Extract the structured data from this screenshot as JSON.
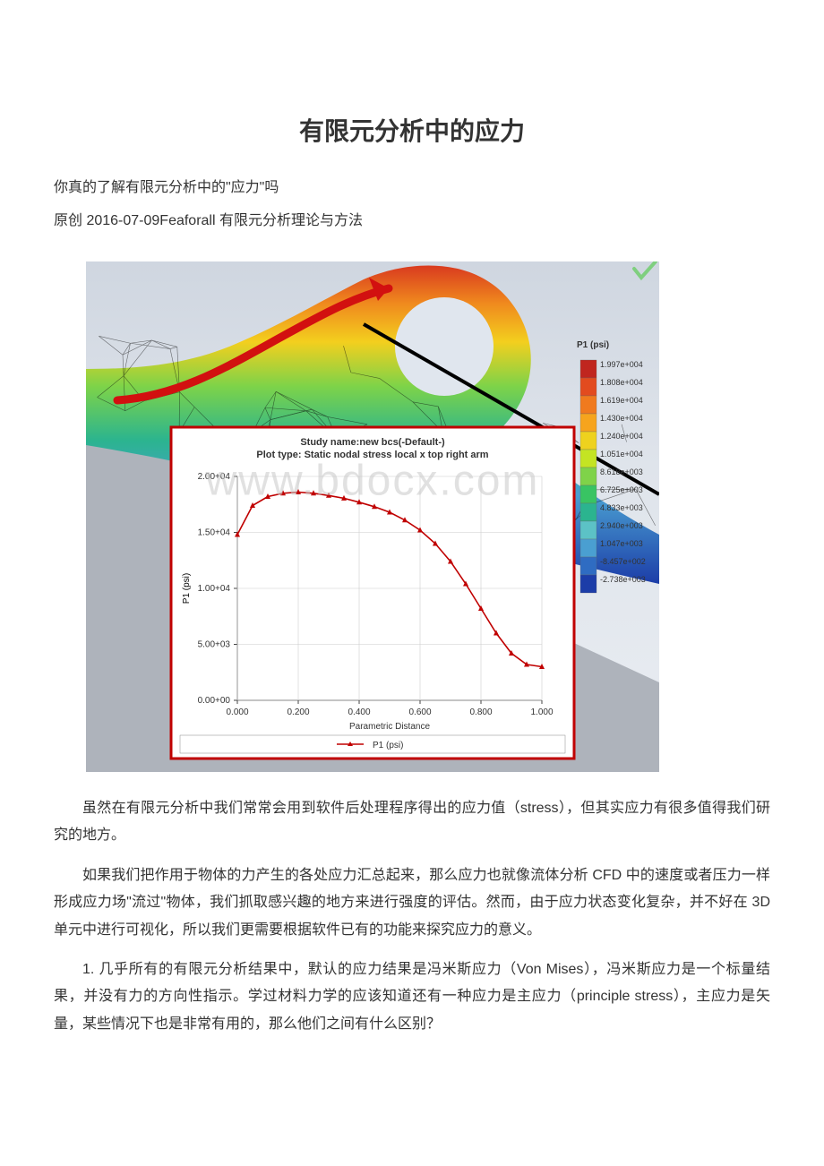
{
  "doc": {
    "title": "有限元分析中的应力",
    "subtitle": "你真的了解有限元分析中的\"应力\"吗",
    "byline": "原创 2016-07-09Feaforall 有限元分析理论与方法",
    "p1": "虽然在有限元分析中我们常常会用到软件后处理程序得出的应力值（stress），但其实应力有很多值得我们研究的地方。",
    "p2": "如果我们把作用于物体的力产生的各处应力汇总起来，那么应力也就像流体分析 CFD 中的速度或者压力一样形成应力场\"流过\"物体，我们抓取感兴趣的地方来进行强度的评估。然而，由于应力状态变化复杂，并不好在 3D 单元中进行可视化，所以我们更需要根据软件已有的功能来探究应力的意义。",
    "p3": "1. 几乎所有的有限元分析结果中，默认的应力结果是冯米斯应力（Von Mises），冯米斯应力是一个标量结果，并没有力的方向性指示。学过材料力学的应该知道还有一种应力是主应力（principle stress），主应力是矢量，某些情况下也是非常有用的，那么他们之间有什么区别？",
    "watermark": "www.bdocx.com"
  },
  "chart": {
    "type": "line",
    "title_line1": "Study name:new bcs(-Default-)",
    "title_line2": "Plot type: Static nodal stress local x top right arm",
    "xlabel": "Parametric Distance",
    "ylabel": "P1 (psi)",
    "legend_label": "P1 (psi)",
    "xlim": [
      0.0,
      1.0
    ],
    "ylim": [
      0,
      20000
    ],
    "xticks": [
      "0.000",
      "0.200",
      "0.400",
      "0.600",
      "0.800",
      "1.000"
    ],
    "yticks": [
      "0.00+00",
      "5.00+03",
      "1.00+04",
      "1.50+04",
      "2.00+04"
    ],
    "line_color": "#c00000",
    "marker_color": "#c00000",
    "marker": "triangle",
    "grid_color": "#cccccc",
    "axis_color": "#444444",
    "text_color": "#333333",
    "title_fontsize": 11,
    "label_fontsize": 10,
    "tick_fontsize": 10,
    "bg_color": "#ffffff",
    "border_color": "#c00000",
    "points": [
      {
        "x": 0.0,
        "y": 14800
      },
      {
        "x": 0.05,
        "y": 17400
      },
      {
        "x": 0.1,
        "y": 18200
      },
      {
        "x": 0.15,
        "y": 18500
      },
      {
        "x": 0.2,
        "y": 18600
      },
      {
        "x": 0.25,
        "y": 18500
      },
      {
        "x": 0.3,
        "y": 18300
      },
      {
        "x": 0.35,
        "y": 18050
      },
      {
        "x": 0.4,
        "y": 17700
      },
      {
        "x": 0.45,
        "y": 17300
      },
      {
        "x": 0.5,
        "y": 16800
      },
      {
        "x": 0.55,
        "y": 16100
      },
      {
        "x": 0.6,
        "y": 15200
      },
      {
        "x": 0.65,
        "y": 14000
      },
      {
        "x": 0.7,
        "y": 12400
      },
      {
        "x": 0.75,
        "y": 10400
      },
      {
        "x": 0.8,
        "y": 8200
      },
      {
        "x": 0.85,
        "y": 6000
      },
      {
        "x": 0.9,
        "y": 4200
      },
      {
        "x": 0.95,
        "y": 3200
      },
      {
        "x": 1.0,
        "y": 3000
      }
    ]
  },
  "colorbar": {
    "title": "P1 (psi)",
    "title_fontsize": 10,
    "tick_fontsize": 9,
    "entries": [
      {
        "label": "1.997e+004",
        "color": "#c0261f"
      },
      {
        "label": "1.808e+004",
        "color": "#e24b1f"
      },
      {
        "label": "1.619e+004",
        "color": "#f07a1e"
      },
      {
        "label": "1.430e+004",
        "color": "#f6a41d"
      },
      {
        "label": "1.240e+004",
        "color": "#eed21e"
      },
      {
        "label": "1.051e+004",
        "color": "#c4e423"
      },
      {
        "label": "8.618e+003",
        "color": "#7fd349"
      },
      {
        "label": "6.725e+003",
        "color": "#39c463"
      },
      {
        "label": "4.833e+003",
        "color": "#2bb48f"
      },
      {
        "label": "2.940e+003",
        "color": "#5cc2c6"
      },
      {
        "label": "1.047e+003",
        "color": "#4a9fd1"
      },
      {
        "label": "-8.457e+002",
        "color": "#2f6cc2"
      },
      {
        "label": "-2.738e+003",
        "color": "#1c3da8"
      }
    ]
  },
  "contour": {
    "mesh_line_color": "#0a0a0a",
    "hole_fill": "#e0e6ee",
    "arrow_color": "#d21010",
    "black_line_color": "#000000",
    "ground_color": "#aeb3bb"
  }
}
